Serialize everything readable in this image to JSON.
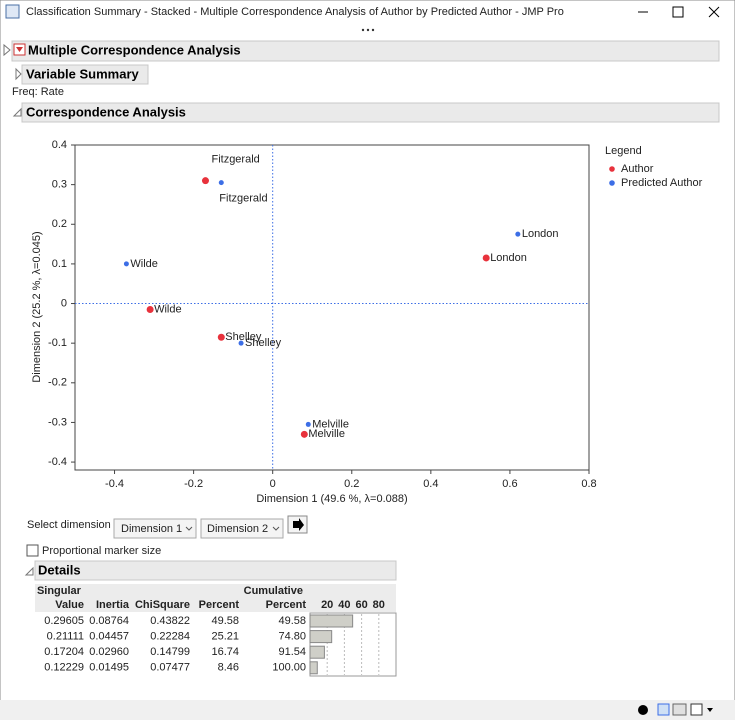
{
  "window": {
    "title": "Classification Summary - Stacked - Multiple Correspondence Analysis of Author by Predicted Author - JMP Pro"
  },
  "outline": {
    "mca": "Multiple Correspondence Analysis",
    "variable_summary": "Variable Summary",
    "freq": "Freq: Rate",
    "ca": "Correspondence Analysis",
    "details": "Details"
  },
  "chart_data": {
    "type": "scatter",
    "xlabel": "Dimension 1  (49.6 %, λ=0.088)",
    "ylabel": "Dimension 2  (25.2 %, λ=0.045)",
    "xlim": [
      -0.5,
      0.8
    ],
    "ylim": [
      -0.42,
      0.4
    ],
    "xticks": [
      -0.4,
      -0.2,
      0,
      0.2,
      0.4,
      0.6,
      0.8
    ],
    "yticks": [
      -0.4,
      -0.3,
      -0.2,
      -0.1,
      0,
      0.1,
      0.2,
      0.3,
      0.4
    ],
    "legend_title": "Legend",
    "series": [
      {
        "name": "Author",
        "color": "#e8323c",
        "labels": [
          "Fitzgerald",
          "London",
          "Wilde",
          "Shelley",
          "Melville"
        ],
        "x": [
          -0.17,
          0.54,
          -0.31,
          -0.13,
          0.08
        ],
        "values": [
          0.31,
          0.115,
          -0.015,
          -0.085,
          -0.33
        ]
      },
      {
        "name": "Predicted Author",
        "color": "#3c6ee6",
        "labels": [
          "Fitzgerald",
          "London",
          "Wilde",
          "Shelley",
          "Melville"
        ],
        "x": [
          -0.13,
          0.62,
          -0.37,
          -0.08,
          0.09
        ],
        "values": [
          0.305,
          0.175,
          0.1,
          -0.1,
          -0.305
        ]
      }
    ]
  },
  "controls": {
    "select_dimension": "Select dimension",
    "dim1": "Dimension 1",
    "dim2": "Dimension 2",
    "proportional": "Proportional marker size"
  },
  "table": {
    "columns": [
      "Singular Value",
      "Inertia",
      "ChiSquare",
      "Percent",
      "Cumulative Percent"
    ],
    "rows": [
      [
        "0.29605",
        "0.08764",
        "0.43822",
        49.58,
        "49.58"
      ],
      [
        "0.21111",
        "0.04457",
        "0.22284",
        25.21,
        "74.80"
      ],
      [
        "0.17204",
        "0.02960",
        "0.14799",
        16.74,
        "91.54"
      ],
      [
        "0.12229",
        "0.01495",
        "0.07477",
        8.46,
        "100.00"
      ]
    ],
    "bar_lim": [
      0,
      100
    ],
    "bar_ticks": [
      20,
      40,
      60,
      80
    ]
  }
}
